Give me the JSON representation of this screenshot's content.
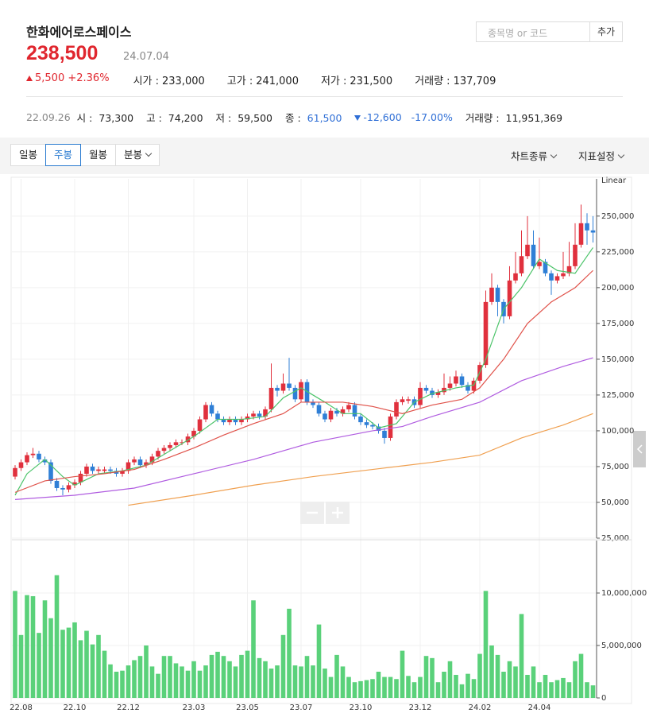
{
  "header": {
    "name": "한화에어로스페이스",
    "price": "238,500",
    "date": "24.07.04",
    "change": "5,500",
    "change_pct": "+2.36%",
    "stats": [
      {
        "label": "시가 :",
        "value": "233,000"
      },
      {
        "label": "고가 :",
        "value": "241,000"
      },
      {
        "label": "저가 :",
        "value": "231,500"
      },
      {
        "label": "거래량 :",
        "value": "137,709"
      }
    ]
  },
  "search": {
    "placeholder": "종목명 or 코드",
    "button": "추가"
  },
  "info": {
    "date": "22.09.26",
    "items": [
      {
        "label": "시 :",
        "value": "73,300"
      },
      {
        "label": "고 :",
        "value": "74,200"
      },
      {
        "label": "저 :",
        "value": "59,500"
      },
      {
        "label": "종 :",
        "value": "61,500"
      }
    ],
    "change": "-12,600",
    "change_pct": "-17.00%",
    "volume_label": "거래량 :",
    "volume": "11,951,369"
  },
  "tabs": [
    "일봉",
    "주봉",
    "월봉",
    "분봉"
  ],
  "menus": [
    "차트종류",
    "지표설정"
  ],
  "chart_data": [
    {
      "type": "candlestick",
      "scale_label": "Linear",
      "up_color": "#e0303d",
      "down_color": "#2f7fd6",
      "grid": true,
      "ylim": [
        25000,
        276000
      ],
      "yticks": [
        {
          "value": 25000,
          "label": "25,000"
        },
        {
          "value": 50000,
          "label": "50,000"
        },
        {
          "value": 75000,
          "label": "75,000"
        },
        {
          "value": 100000,
          "label": "100,000"
        },
        {
          "value": 125000,
          "label": "125,000"
        },
        {
          "value": 150000,
          "label": "150,000"
        },
        {
          "value": 175000,
          "label": "175,000"
        },
        {
          "value": 200000,
          "label": "200,000"
        },
        {
          "value": 225000,
          "label": "225,000"
        },
        {
          "value": 250000,
          "label": "250,000"
        }
      ],
      "open": [
        68000,
        74000,
        78000,
        83000,
        84000,
        80000,
        78000,
        65000,
        60000,
        59000,
        62000,
        64000,
        70000,
        75000,
        72000,
        72000,
        73000,
        72000,
        70000,
        72000,
        78000,
        80000,
        76000,
        78000,
        82000,
        86000,
        88000,
        90000,
        92000,
        92000,
        96000,
        100000,
        108000,
        118000,
        112000,
        108000,
        106000,
        108000,
        106000,
        108000,
        110000,
        112000,
        110000,
        115000,
        130000,
        128000,
        133000,
        130000,
        122000,
        134000,
        120000,
        118000,
        112000,
        108000,
        114000,
        112000,
        115000,
        118000,
        110000,
        106000,
        104000,
        103000,
        100000,
        95000,
        110000,
        120000,
        121000,
        122000,
        118000,
        130000,
        128000,
        125000,
        127000,
        130000,
        133000,
        138000,
        132000,
        128000,
        135000,
        146000,
        190000,
        200000,
        190000,
        180000,
        205000,
        210000,
        222000,
        230000,
        215000,
        218000,
        210000,
        205000,
        208000,
        210000,
        215000,
        230000,
        245000,
        240000
      ],
      "high": [
        76000,
        80000,
        85000,
        88000,
        86000,
        82000,
        80000,
        67000,
        62000,
        64000,
        66000,
        72000,
        77000,
        77000,
        75000,
        75000,
        75000,
        74000,
        74000,
        80000,
        82000,
        82000,
        80000,
        84000,
        88000,
        90000,
        92000,
        94000,
        94000,
        98000,
        102000,
        110000,
        120000,
        120000,
        114000,
        110000,
        110000,
        110000,
        110000,
        112000,
        114000,
        114000,
        117000,
        147000,
        132000,
        140000,
        151000,
        132000,
        136000,
        136000,
        122000,
        120000,
        114000,
        116000,
        116000,
        117000,
        120000,
        120000,
        112000,
        108000,
        106000,
        105000,
        102000,
        112000,
        122000,
        124000,
        124000,
        124000,
        134000,
        132000,
        130000,
        129000,
        140000,
        138000,
        142000,
        140000,
        134000,
        137000,
        148000,
        198000,
        210000,
        202000,
        192000,
        215000,
        225000,
        240000,
        250000,
        240000,
        235000,
        220000,
        212000,
        210000,
        225000,
        232000,
        245000,
        258000,
        252000,
        250000
      ],
      "low": [
        66000,
        72000,
        76000,
        81000,
        78000,
        76000,
        63000,
        58000,
        55000,
        57000,
        60000,
        62000,
        68000,
        70000,
        70000,
        70000,
        70000,
        68000,
        68000,
        70000,
        76000,
        74000,
        74000,
        76000,
        80000,
        84000,
        86000,
        88000,
        90000,
        90000,
        94000,
        98000,
        106000,
        110000,
        106000,
        104000,
        104000,
        104000,
        104000,
        106000,
        108000,
        108000,
        108000,
        113000,
        124000,
        126000,
        128000,
        120000,
        120000,
        118000,
        116000,
        110000,
        106000,
        106000,
        110000,
        110000,
        113000,
        108000,
        104000,
        102000,
        101000,
        98000,
        91000,
        93000,
        108000,
        118000,
        119000,
        116000,
        116000,
        126000,
        123000,
        123000,
        125000,
        128000,
        131000,
        130000,
        126000,
        126000,
        133000,
        144000,
        188000,
        180000,
        175000,
        178000,
        203000,
        208000,
        220000,
        213000,
        213000,
        208000,
        195000,
        203000,
        206000,
        208000,
        213000,
        228000,
        230000,
        231500
      ],
      "close": [
        74000,
        78000,
        83000,
        84000,
        80000,
        78000,
        65000,
        60000,
        59000,
        62000,
        64000,
        70000,
        75000,
        72000,
        73000,
        73000,
        72000,
        70000,
        72000,
        78000,
        80000,
        76000,
        78000,
        82000,
        86000,
        88000,
        90000,
        92000,
        92000,
        96000,
        100000,
        108000,
        118000,
        112000,
        108000,
        106000,
        108000,
        106000,
        108000,
        110000,
        112000,
        110000,
        115000,
        130000,
        128000,
        133000,
        130000,
        122000,
        134000,
        120000,
        118000,
        112000,
        108000,
        114000,
        112000,
        115000,
        118000,
        110000,
        106000,
        104000,
        103000,
        100000,
        95000,
        110000,
        120000,
        122000,
        122000,
        118000,
        130000,
        128000,
        125000,
        127000,
        130000,
        133000,
        138000,
        132000,
        128000,
        135000,
        146000,
        190000,
        200000,
        190000,
        180000,
        205000,
        210000,
        222000,
        230000,
        215000,
        218000,
        210000,
        205000,
        208000,
        210000,
        215000,
        230000,
        245000,
        240000,
        238500
      ],
      "series": [
        {
          "color": "#4cc46a",
          "x": [
            0,
            2,
            5,
            8,
            10,
            14,
            18,
            22,
            26,
            30,
            34,
            38,
            42,
            45,
            48,
            52,
            55,
            58,
            61,
            64,
            67,
            70,
            74,
            77,
            79,
            82,
            85,
            88,
            91,
            94,
            97
          ],
          "values": [
            55000,
            70000,
            80000,
            68000,
            62000,
            70000,
            72000,
            76000,
            86000,
            96000,
            108000,
            108000,
            110000,
            123000,
            130000,
            120000,
            112000,
            112000,
            102000,
            105000,
            120000,
            126000,
            130000,
            132000,
            150000,
            185000,
            200000,
            220000,
            212000,
            210000,
            228000
          ]
        },
        {
          "color": "#e0524a",
          "x": [
            0,
            5,
            10,
            15,
            20,
            25,
            30,
            35,
            40,
            45,
            48,
            55,
            60,
            65,
            70,
            75,
            78,
            82,
            86,
            90,
            94,
            97
          ],
          "values": [
            57000,
            65000,
            68000,
            70000,
            73000,
            80000,
            88000,
            97000,
            105000,
            112000,
            120000,
            120000,
            117000,
            112000,
            118000,
            122000,
            130000,
            150000,
            175000,
            190000,
            200000,
            212000
          ]
        },
        {
          "color": "#b05ce0",
          "x": [
            0,
            10,
            20,
            30,
            40,
            50,
            60,
            65,
            70,
            78,
            85,
            92,
            97
          ],
          "values": [
            52000,
            55000,
            60000,
            70000,
            80000,
            92000,
            100000,
            103000,
            110000,
            120000,
            135000,
            145000,
            151000
          ]
        },
        {
          "color": "#f0a050",
          "x": [
            19,
            30,
            40,
            50,
            60,
            70,
            78,
            85,
            92,
            97
          ],
          "values": [
            48000,
            55000,
            62000,
            68000,
            73000,
            78000,
            83000,
            95000,
            104000,
            112000
          ]
        }
      ]
    },
    {
      "type": "bar",
      "color": "#5ad17a",
      "grid": true,
      "ylim": [
        0,
        15000000
      ],
      "yticks": [
        0,
        {
          "value": 5000000,
          "label": "5,000,000"
        },
        {
          "value": 10000000,
          "label": "10,000,000"
        }
      ],
      "categories": [
        null,
        "22.08",
        null,
        null,
        null,
        null,
        null,
        null,
        null,
        null,
        "22.10",
        null,
        null,
        null,
        null,
        null,
        null,
        null,
        null,
        "22.12",
        null,
        null,
        null,
        null,
        null,
        null,
        null,
        null,
        null,
        null,
        "23.03",
        null,
        null,
        null,
        null,
        null,
        null,
        null,
        null,
        "23.05",
        null,
        null,
        null,
        null,
        null,
        null,
        null,
        null,
        "23.07",
        null,
        null,
        null,
        null,
        null,
        null,
        null,
        null,
        null,
        "23.10",
        null,
        null,
        null,
        null,
        null,
        null,
        null,
        null,
        null,
        "23.12",
        null,
        null,
        null,
        null,
        null,
        null,
        null,
        null,
        null,
        "24.02",
        null,
        null,
        null,
        null,
        null,
        null,
        null,
        null,
        null,
        "24.04",
        null,
        null,
        null,
        null,
        null,
        null,
        null,
        null,
        null
      ],
      "values": [
        10200000,
        6000000,
        9800000,
        9700000,
        6200000,
        9300000,
        7600000,
        11700000,
        6500000,
        6700000,
        7200000,
        5500000,
        6400000,
        5100000,
        6000000,
        4500000,
        3200000,
        2500000,
        2600000,
        3100000,
        3600000,
        4000000,
        5000000,
        3000000,
        2300000,
        4000000,
        4000000,
        3300000,
        3000000,
        2600000,
        3500000,
        2600000,
        3100000,
        4100000,
        4400000,
        4000000,
        3500000,
        3000000,
        4100000,
        4500000,
        9300000,
        3800000,
        3500000,
        2800000,
        3100000,
        6000000,
        8500000,
        3100000,
        3000000,
        4000000,
        3100000,
        7000000,
        2800000,
        2000000,
        4100000,
        3000000,
        2000000,
        1500000,
        1600000,
        1700000,
        1800000,
        2500000,
        2000000,
        2000000,
        1800000,
        4500000,
        2100000,
        1500000,
        2000000,
        4000000,
        3800000,
        1500000,
        2500000,
        3500000,
        2200000,
        1300000,
        2300000,
        1800000,
        4200000,
        10200000,
        5000000,
        4100000,
        2500000,
        3500000,
        3000000,
        8000000,
        2200000,
        3000000,
        1500000,
        2200000,
        1500000,
        1700000,
        1900000,
        1500000,
        3500000,
        4200000,
        1500000,
        1200000
      ]
    }
  ]
}
